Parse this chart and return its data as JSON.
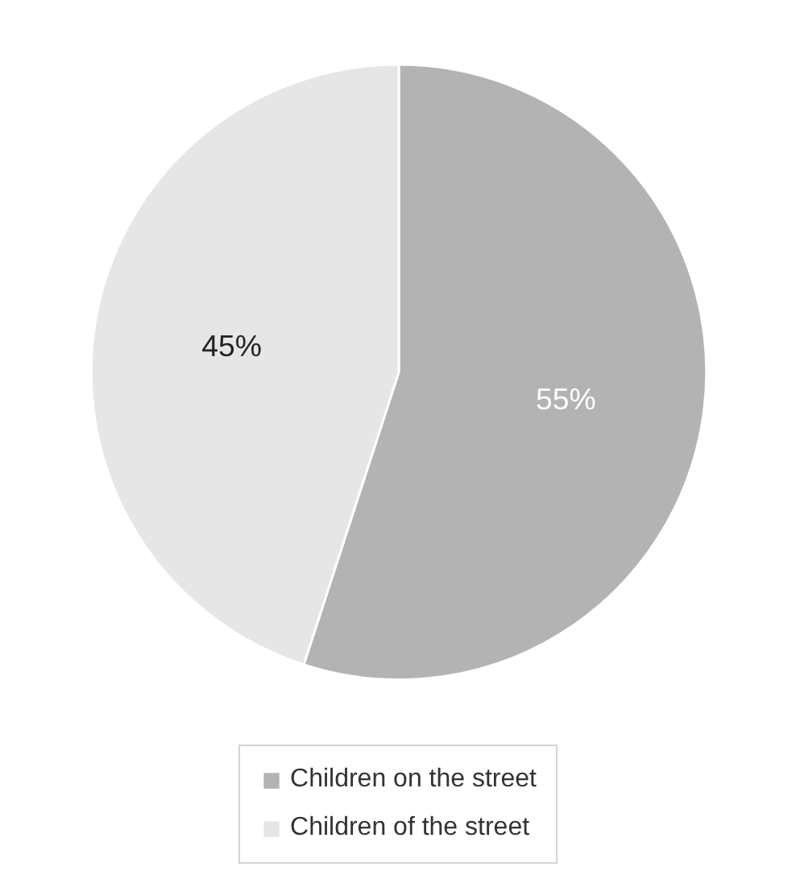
{
  "chart_data": {
    "type": "pie",
    "categories": [
      "Children on the street",
      "Children of the street"
    ],
    "values": [
      55,
      45
    ],
    "colors": [
      "#b3b3b3",
      "#e6e6e6"
    ],
    "value_labels": [
      "55%",
      "45%"
    ],
    "legend": "bottom"
  }
}
